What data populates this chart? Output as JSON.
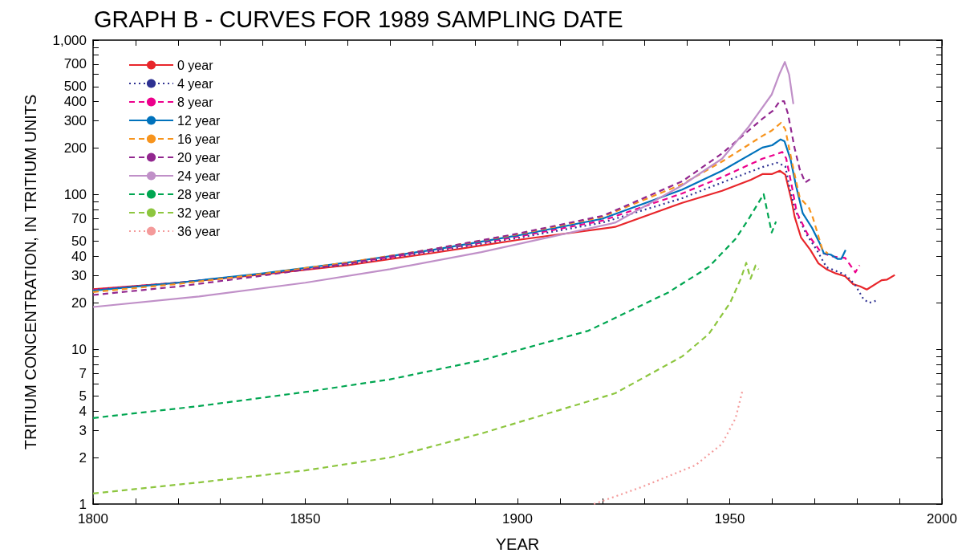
{
  "chart_data": {
    "type": "line",
    "title": "GRAPH B - CURVES FOR 1989 SAMPLING DATE",
    "xlabel": "YEAR",
    "ylabel": "TRITIUM CONCENTRATION, IN TRITIUM UNITS",
    "log": "y",
    "grid": false,
    "legend": "top left",
    "marker": "none",
    "xlim": [
      1800,
      2000
    ],
    "xticks": [
      1800,
      {
        "value": 1810,
        "label": null
      },
      {
        "value": 1820,
        "label": null
      },
      {
        "value": 1830,
        "label": null
      },
      {
        "value": 1840,
        "label": null
      },
      1850,
      {
        "value": 1860,
        "label": null
      },
      {
        "value": 1870,
        "label": null
      },
      {
        "value": 1880,
        "label": null
      },
      {
        "value": 1890,
        "label": null
      },
      1900,
      {
        "value": 1910,
        "label": null
      },
      {
        "value": 1920,
        "label": null
      },
      {
        "value": 1930,
        "label": null
      },
      {
        "value": 1940,
        "label": null
      },
      1950,
      {
        "value": 1960,
        "label": null
      },
      {
        "value": 1970,
        "label": null
      },
      {
        "value": 1980,
        "label": null
      },
      {
        "value": 1990,
        "label": null
      },
      2000
    ],
    "ylim": [
      1,
      1000
    ],
    "yticks": [
      1,
      2,
      3,
      4,
      5,
      {
        "value": 6,
        "label": null
      },
      7,
      {
        "value": 8,
        "label": null
      },
      {
        "value": 9,
        "label": null
      },
      10,
      20,
      30,
      40,
      50,
      {
        "value": 60,
        "label": null
      },
      70,
      {
        "value": 80,
        "label": null
      },
      {
        "value": 90,
        "label": null
      },
      100,
      200,
      300,
      400,
      500,
      {
        "value": 600,
        "label": null
      },
      700,
      {
        "value": 800,
        "label": null
      },
      {
        "value": 900,
        "label": null
      },
      {
        "value": 1000,
        "label": "1,000"
      }
    ],
    "series": [
      {
        "name": "0 year",
        "color": "#e8262b",
        "line_style": "solid",
        "x": [
          1800,
          1820,
          1840,
          1860,
          1880,
          1891.5,
          1900,
          1923,
          1938.8,
          1948.2,
          1955,
          1957.7,
          1959.9,
          1961.8,
          1963.1,
          1964.6,
          1965.3,
          1966.8,
          1969,
          1970.9,
          1972.8,
          1975,
          1977.2,
          1979.1,
          1980.7,
          1982.3,
          1985.8,
          1987.1,
          1988.9
        ],
        "values": [
          24.5,
          27,
          30.5,
          35,
          42,
          47,
          51,
          62,
          88.7,
          106,
          125,
          136,
          136,
          143,
          135,
          91,
          72,
          53,
          44,
          36,
          33,
          31,
          29.7,
          26.4,
          25.6,
          24.4,
          28,
          28.3,
          30.3
        ]
      },
      {
        "name": "4 year",
        "color": "#2e3192",
        "line_style": "dotted",
        "x": [
          1800,
          1820,
          1840,
          1860,
          1880,
          1900,
          1920,
          1938.8,
          1948.2,
          1957.7,
          1961.1,
          1963.1,
          1964,
          1965.3,
          1968,
          1970.5,
          1972.8,
          1976.5,
          1977.7,
          1979.6,
          1981.5,
          1982.8,
          1984.4
        ],
        "values": [
          24.3,
          27,
          30.7,
          35.5,
          43,
          52.5,
          66,
          95,
          120,
          151,
          161,
          153,
          115,
          81,
          56,
          44,
          34,
          31,
          29.7,
          26,
          21.2,
          20,
          20.6
        ]
      },
      {
        "name": "8 year",
        "color": "#ec008c",
        "line_style": "dashed",
        "x": [
          1800,
          1820,
          1840,
          1860,
          1880,
          1900,
          1920,
          1938.8,
          1948.2,
          1957.7,
          1960.5,
          1962.4,
          1963.3,
          1964.6,
          1965.8,
          1968.3,
          1971.5,
          1974,
          1977.2,
          1979.6,
          1980.6
        ],
        "values": [
          24.2,
          27,
          30.8,
          36,
          43.5,
          53.5,
          68,
          102,
          130,
          171,
          181,
          189,
          172,
          115,
          77,
          56,
          42.5,
          40,
          39,
          31.5,
          35
        ]
      },
      {
        "name": "12 year",
        "color": "#0072bc",
        "line_style": "solid",
        "x": [
          1800,
          1820,
          1840,
          1860,
          1880,
          1900,
          1920,
          1938.8,
          1948.2,
          1957.7,
          1960,
          1962,
          1962.9,
          1964.3,
          1965.6,
          1967.2,
          1969.4,
          1971.3,
          1972.2,
          1973.8,
          1975.4,
          1976.3,
          1977.3
        ],
        "values": [
          24,
          27,
          31,
          36.5,
          44,
          54.5,
          70,
          108,
          143,
          202,
          209,
          228,
          222,
          171,
          115,
          76,
          61,
          48,
          41.7,
          41,
          38.5,
          38.5,
          43.9
        ]
      },
      {
        "name": "16 year",
        "color": "#f7941d",
        "line_style": "dashed",
        "x": [
          1800,
          1820,
          1840,
          1860,
          1880,
          1900,
          1920,
          1938.8,
          1948.2,
          1957.7,
          1959.9,
          1962.1,
          1963.1,
          1964,
          1965.3,
          1966.5,
          1968.7,
          1969.6,
          1970.9,
          1971.8,
          1973.1
        ],
        "values": [
          23.5,
          26.5,
          30.8,
          36.5,
          44.5,
          55.5,
          72,
          117,
          164,
          240,
          260,
          292,
          265,
          200,
          135,
          96,
          82,
          71,
          54,
          44.5,
          41.7
        ]
      },
      {
        "name": "20 year",
        "color": "#92278f",
        "line_style": "dashed",
        "x": [
          1800,
          1820,
          1840,
          1860,
          1880,
          1900,
          1920,
          1938.8,
          1948.2,
          1957.7,
          1960.2,
          1961.8,
          1962.8,
          1963.7,
          1965.3,
          1966.5,
          1967.8,
          1968.9
        ],
        "values": [
          22.5,
          25.5,
          30,
          36,
          44.5,
          56,
          73,
          122,
          185,
          310,
          350,
          403,
          403,
          336,
          200,
          146,
          120,
          126
        ]
      },
      {
        "name": "24 year",
        "color": "#c090c8",
        "line_style": "solid",
        "x": [
          1800,
          1825,
          1850,
          1870,
          1891.5,
          1923,
          1938.8,
          1948.2,
          1954.5,
          1959.9,
          1961.8,
          1963,
          1964,
          1965
        ],
        "values": [
          18.8,
          22,
          27,
          33,
          42.6,
          66,
          115,
          171,
          276,
          445,
          611,
          722,
          598,
          386
        ]
      },
      {
        "name": "28 year",
        "color": "#00a651",
        "line_style": "dashed",
        "x": [
          1800,
          1825,
          1850,
          1870,
          1891.5,
          1916.7,
          1935.6,
          1945.1,
          1951.4,
          1954.5,
          1958,
          1959.9,
          1960.9
        ],
        "values": [
          3.6,
          4.3,
          5.3,
          6.4,
          8.5,
          13.2,
          23.4,
          34.2,
          51.9,
          70,
          101,
          57,
          67
        ]
      },
      {
        "name": "32 year",
        "color": "#8dc63f",
        "line_style": "dashed",
        "x": [
          1800,
          1825,
          1850,
          1870,
          1891.5,
          1923,
          1938.8,
          1945.1,
          1950.1,
          1952.6,
          1953.9,
          1954.9,
          1956.1,
          1956.8
        ],
        "values": [
          1.17,
          1.38,
          1.65,
          2.0,
          2.86,
          5.2,
          9.0,
          12.6,
          20,
          28.6,
          36.3,
          28.6,
          34.9,
          32.9
        ]
      },
      {
        "name": "36 year",
        "color": "#f49a9a",
        "line_style": "dotted",
        "x": [
          1918,
          1929.3,
          1941.9,
          1948.2,
          1951.4,
          1953
        ],
        "values": [
          1.0,
          1.29,
          1.78,
          2.45,
          3.6,
          5.4
        ]
      }
    ]
  }
}
